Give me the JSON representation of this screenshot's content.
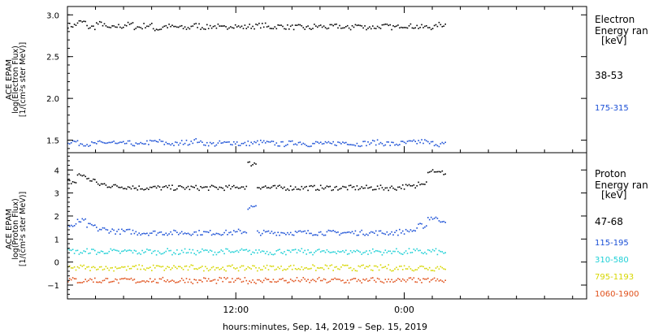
{
  "chart_data": [
    {
      "type": "scatter",
      "panel": "electron",
      "ylabel_lines": [
        "ACE EPAM",
        "log(Electron Flux)",
        "[1/(cm²s ster MeV)]"
      ],
      "ylim": [
        1.35,
        3.1
      ],
      "yticks": [
        {
          "value": 1.5,
          "label": "1.5"
        },
        {
          "value": 2.0,
          "label": "2.0"
        },
        {
          "value": 2.5,
          "label": "2.5"
        },
        {
          "value": 3.0,
          "label": "3.0"
        }
      ],
      "legend": {
        "title_lines": [
          "Electron",
          "Energy ran",
          "[keV]"
        ],
        "placement": "right"
      },
      "series": [
        {
          "name": "38-53",
          "color": "#000000",
          "values": [
            2.88,
            2.92,
            2.86,
            2.9,
            2.85,
            2.87,
            2.89,
            2.86,
            2.88,
            2.84,
            2.87,
            2.86,
            2.85,
            2.88,
            2.86,
            2.87,
            2.85,
            2.88,
            2.86,
            2.87,
            2.88,
            2.86,
            2.87,
            2.86,
            2.86,
            2.85,
            2.87,
            2.86,
            2.87,
            2.85,
            2.88,
            2.86,
            2.86,
            2.87,
            2.86,
            2.88,
            2.87,
            2.86,
            2.86,
            2.89
          ]
        },
        {
          "name": "175-315",
          "color": "#1a4fd6",
          "values": [
            1.49,
            1.47,
            1.46,
            1.47,
            1.48,
            1.46,
            1.47,
            1.45,
            1.48,
            1.49,
            1.47,
            1.46,
            1.48,
            1.5,
            1.47,
            1.46,
            1.47,
            1.48,
            1.46,
            1.47,
            1.48,
            1.47,
            1.46,
            1.47,
            1.48,
            1.46,
            1.47,
            1.46,
            1.47,
            1.48,
            1.46,
            1.47,
            1.48,
            1.47,
            1.46,
            1.47,
            1.48,
            1.49,
            1.47,
            1.46
          ]
        }
      ]
    },
    {
      "type": "scatter",
      "panel": "proton",
      "ylabel_lines": [
        "ACE EPAM",
        "log(Proton Flux)",
        "[1/(cm²s ster MeV)]"
      ],
      "ylim": [
        -1.6,
        4.75
      ],
      "yticks": [
        {
          "value": -1,
          "label": "−1"
        },
        {
          "value": 0,
          "label": "0"
        },
        {
          "value": 1,
          "label": "1"
        },
        {
          "value": 2,
          "label": "2"
        },
        {
          "value": 3,
          "label": "3"
        },
        {
          "value": 4,
          "label": "4"
        }
      ],
      "legend": {
        "title_lines": [
          "Proton",
          "Energy ran",
          "[keV]"
        ],
        "placement": "right"
      },
      "series": [
        {
          "name": "47-68",
          "color": "#000000",
          "values": [
            3.5,
            3.8,
            3.6,
            3.4,
            3.35,
            3.3,
            3.3,
            3.25,
            3.25,
            3.25,
            3.25,
            3.25,
            3.25,
            3.25,
            3.25,
            3.25,
            3.25,
            3.25,
            3.3,
            4.3,
            3.3,
            3.25,
            3.25,
            3.25,
            3.25,
            3.25,
            3.25,
            3.25,
            3.25,
            3.25,
            3.25,
            3.25,
            3.25,
            3.25,
            3.25,
            3.3,
            3.3,
            3.5,
            4.0,
            3.9
          ]
        },
        {
          "name": "115-195",
          "color": "#1a4fd6",
          "values": [
            1.6,
            1.8,
            1.6,
            1.45,
            1.4,
            1.35,
            1.35,
            1.3,
            1.3,
            1.3,
            1.3,
            1.3,
            1.3,
            1.3,
            1.3,
            1.3,
            1.3,
            1.3,
            1.35,
            2.4,
            1.3,
            1.3,
            1.3,
            1.3,
            1.3,
            1.3,
            1.3,
            1.3,
            1.3,
            1.3,
            1.3,
            1.3,
            1.3,
            1.3,
            1.3,
            1.35,
            1.4,
            1.6,
            1.95,
            1.85
          ]
        },
        {
          "name": "310-580",
          "color": "#1fd0d6",
          "values": [
            0.5,
            0.45,
            0.5,
            0.45,
            0.5,
            0.45,
            0.5,
            0.45,
            0.5,
            0.45,
            0.5,
            0.45,
            0.5,
            0.45,
            0.5,
            0.45,
            0.5,
            0.45,
            0.5,
            0.45,
            0.5,
            0.45,
            0.5,
            0.45,
            0.5,
            0.45,
            0.5,
            0.45,
            0.5,
            0.45,
            0.5,
            0.45,
            0.5,
            0.45,
            0.5,
            0.45,
            0.5,
            0.45,
            0.5,
            0.45
          ]
        },
        {
          "name": "795-1193",
          "color": "#d6d600",
          "values": [
            -0.25,
            -0.2,
            -0.25,
            -0.2,
            -0.25,
            -0.2,
            -0.25,
            -0.2,
            -0.25,
            -0.2,
            -0.25,
            -0.2,
            -0.25,
            -0.2,
            -0.25,
            -0.2,
            -0.25,
            -0.2,
            -0.25,
            -0.2,
            -0.25,
            -0.2,
            -0.25,
            -0.2,
            -0.25,
            -0.2,
            -0.25,
            -0.2,
            -0.25,
            -0.2,
            -0.25,
            -0.2,
            -0.25,
            -0.2,
            -0.25,
            -0.2,
            -0.25,
            -0.2,
            -0.25,
            -0.2
          ]
        },
        {
          "name": "1060-1900",
          "color": "#e0501a",
          "values": [
            -0.75,
            -0.8,
            -0.75,
            -0.8,
            -0.75,
            -0.8,
            -0.75,
            -0.8,
            -0.75,
            -0.8,
            -0.75,
            -0.8,
            -0.75,
            -0.8,
            -0.75,
            -0.8,
            -0.75,
            -0.8,
            -0.75,
            -0.8,
            -0.75,
            -0.8,
            -0.75,
            -0.8,
            -0.75,
            -0.8,
            -0.75,
            -0.8,
            -0.75,
            -0.8,
            -0.75,
            -0.8,
            -0.75,
            -0.8,
            -0.75,
            -0.8,
            -0.75,
            -0.8,
            -0.75,
            -0.8
          ]
        }
      ]
    }
  ],
  "xaxis": {
    "label": "hours:minutes, Sep. 14, 2019 – Sep. 15, 2019",
    "start_hour": 0,
    "end_hour": 37,
    "data_end_hour": 27,
    "ticks": [
      {
        "hour": 12,
        "label": "12:00"
      },
      {
        "hour": 24,
        "label": "0:00"
      }
    ]
  }
}
